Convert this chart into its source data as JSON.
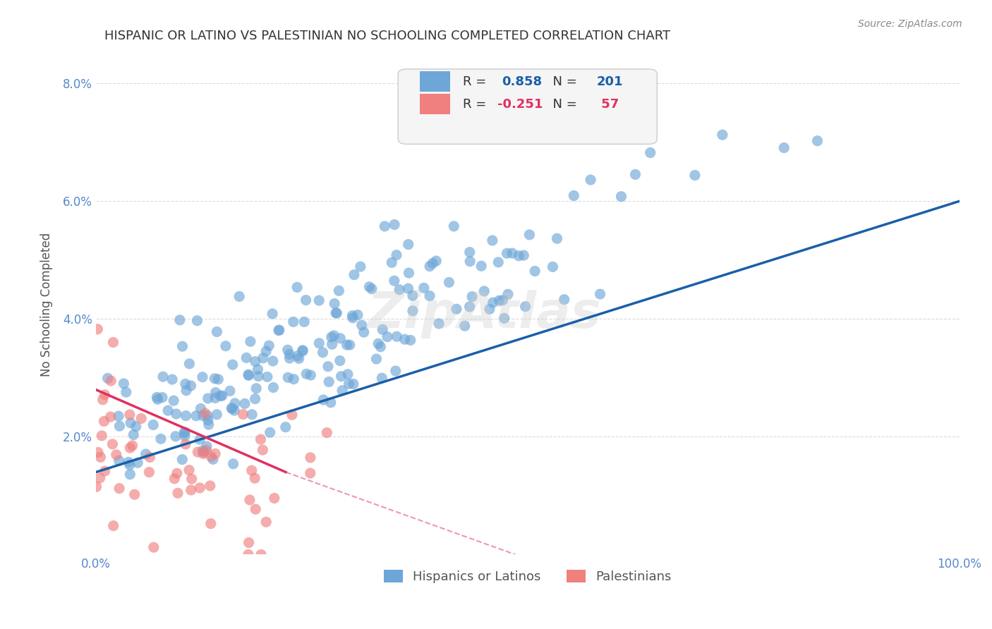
{
  "title": "HISPANIC OR LATINO VS PALESTINIAN NO SCHOOLING COMPLETED CORRELATION CHART",
  "source": "Source: ZipAtlas.com",
  "xlabel": "",
  "ylabel": "No Schooling Completed",
  "xlim": [
    0,
    1.0
  ],
  "ylim": [
    0,
    0.085
  ],
  "xticks": [
    0.0,
    0.1,
    0.2,
    0.3,
    0.4,
    0.5,
    0.6,
    0.7,
    0.8,
    0.9,
    1.0
  ],
  "yticks": [
    0.0,
    0.02,
    0.04,
    0.06,
    0.08
  ],
  "ytick_labels": [
    "",
    "2.0%",
    "4.0%",
    "6.0%",
    "8.0%"
  ],
  "xtick_labels": [
    "0.0%",
    "",
    "",
    "",
    "",
    "",
    "",
    "",
    "",
    "",
    "100.0%"
  ],
  "legend_r1": "R =  0.858",
  "legend_n1": "N = 201",
  "legend_r2": "R = -0.251",
  "legend_n2": "N =  57",
  "blue_color": "#6ea6d8",
  "pink_color": "#f08080",
  "blue_line_color": "#1a5fa8",
  "pink_line_color": "#e03060",
  "watermark": "ZipAtlas",
  "background_color": "#ffffff",
  "grid_color": "#cccccc",
  "axis_color": "#5588cc",
  "title_color": "#333333",
  "legend_box_color": "#f5f5f5",
  "blue_scatter_R": 0.858,
  "blue_scatter_N": 201,
  "pink_scatter_R": -0.251,
  "pink_scatter_N": 57,
  "blue_line_x": [
    0.0,
    1.0
  ],
  "blue_line_y": [
    0.014,
    0.06
  ],
  "pink_line_x": [
    0.0,
    0.5
  ],
  "pink_line_y": [
    0.028,
    0.0
  ],
  "legend_label_blue": "Hispanics or Latinos",
  "legend_label_pink": "Palestinians"
}
